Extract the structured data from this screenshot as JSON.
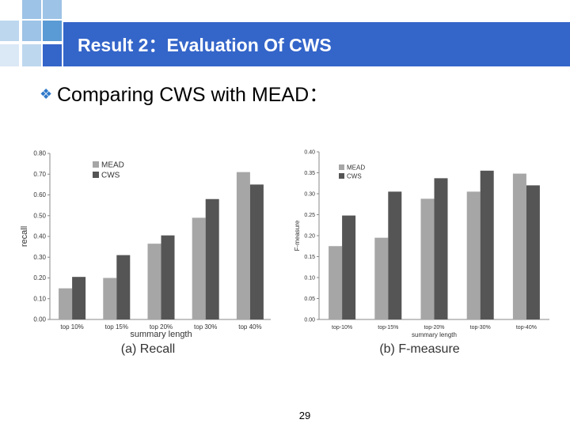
{
  "slide": {
    "title": "Result 2：Evaluation Of CWS",
    "bullet": "Comparing CWS with MEAD：",
    "page_number": "29",
    "colors": {
      "title_bar": "#3465c9",
      "accent_blue": "#5b9bd5",
      "light_blue": "#9dc3e6",
      "mead_bar": "#a6a6a6",
      "cws_bar": "#555555"
    }
  },
  "chart_data": [
    {
      "type": "bar",
      "caption": "(a) Recall",
      "xlabel": "summary length",
      "ylabel": "recall",
      "categories": [
        "top 10%",
        "top 15%",
        "top 20%",
        "top 30%",
        "top 40%"
      ],
      "series": [
        {
          "name": "MEAD",
          "values": [
            0.15,
            0.2,
            0.365,
            0.49,
            0.71
          ]
        },
        {
          "name": "CWS",
          "values": [
            0.205,
            0.31,
            0.405,
            0.58,
            0.65
          ]
        }
      ],
      "ylim": [
        0,
        0.8
      ],
      "yticks": [
        "0.00",
        "0.10",
        "0.20",
        "0.30",
        "0.40",
        "0.50",
        "0.60",
        "0.70",
        "0.80"
      ],
      "legend_position": "top-left",
      "grid": false
    },
    {
      "type": "bar",
      "caption": "(b) F-measure",
      "xlabel": "summary length",
      "ylabel": "F-measure",
      "categories": [
        "top-10%",
        "top-15%",
        "top-20%",
        "top-30%",
        "top-40%"
      ],
      "series": [
        {
          "name": "MEAD",
          "values": [
            0.175,
            0.195,
            0.288,
            0.305,
            0.348
          ]
        },
        {
          "name": "CWS",
          "values": [
            0.248,
            0.305,
            0.337,
            0.355,
            0.32
          ]
        }
      ],
      "ylim": [
        0,
        0.4
      ],
      "yticks": [
        "0.00",
        "0.05",
        "0.10",
        "0.15",
        "0.20",
        "0.25",
        "0.30",
        "0.35",
        "0.40"
      ],
      "legend_position": "top-left",
      "grid": false
    }
  ]
}
